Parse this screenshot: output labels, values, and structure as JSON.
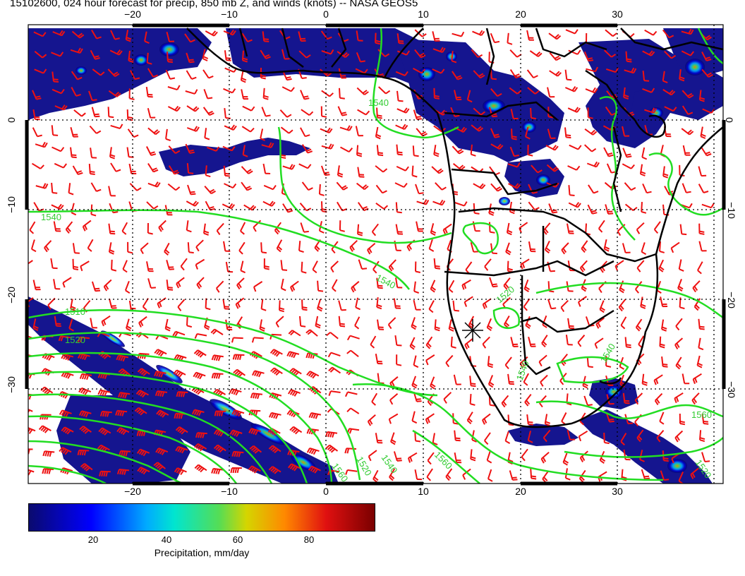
{
  "title": "15102600, 024 hour forecast for precip, 850 mb Z, and winds (knots) -- NASA GEOS5",
  "map": {
    "lon_range": [
      -30,
      41
    ],
    "lat_range": [
      -41,
      10
    ],
    "x_ticks": [
      "−20",
      "−10",
      "0",
      "10",
      "20",
      "30"
    ],
    "y_ticks": [
      "0",
      "−10",
      "−20",
      "−30"
    ],
    "colors": {
      "wind_barbs": "#ee1111",
      "height_contours": "#22dd22",
      "coastlines": "#000000",
      "grid": "#000000"
    },
    "contour_labels": [
      "1540",
      "1540",
      "1540",
      "1520",
      "1510",
      "1520",
      "1540",
      "1560",
      "1540",
      "1520",
      "1560",
      "1520",
      "1540",
      "1560"
    ]
  },
  "colorbar": {
    "labels": [
      "20",
      "40",
      "60",
      "80"
    ],
    "title": "Precipitation, mm/day",
    "range": [
      0,
      100
    ],
    "colors": [
      "#0a0a6e",
      "#0000ff",
      "#00aaff",
      "#00e5d0",
      "#55dd55",
      "#d5d500",
      "#ff8800",
      "#e01010",
      "#7a0000"
    ]
  }
}
